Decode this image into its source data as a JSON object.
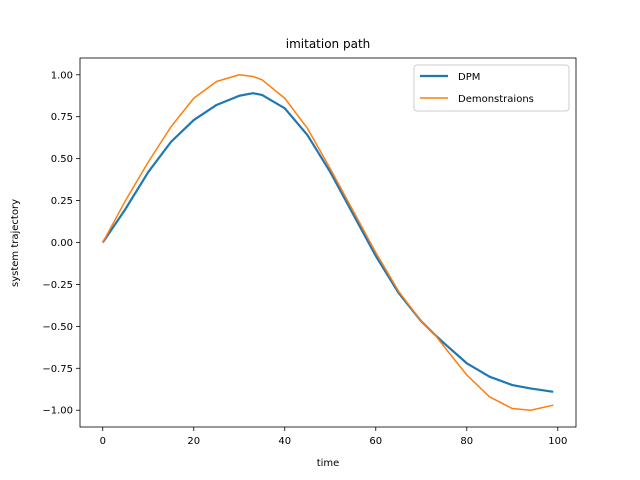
{
  "chart_data": {
    "type": "line",
    "title": "imitation path",
    "xlabel": "time",
    "ylabel": "system trajectory",
    "xlim": [
      -5,
      104
    ],
    "ylim": [
      -1.1,
      1.1
    ],
    "xticks": [
      0,
      20,
      40,
      60,
      80,
      100
    ],
    "yticks": [
      -1.0,
      -0.75,
      -0.5,
      -0.25,
      0.0,
      0.25,
      0.5,
      0.75,
      1.0
    ],
    "ytick_labels": [
      "−1.00",
      "−0.75",
      "−0.50",
      "−0.25",
      "0.00",
      "0.25",
      "0.50",
      "0.75",
      "1.00"
    ],
    "xtick_labels": [
      "0",
      "20",
      "40",
      "60",
      "80",
      "100"
    ],
    "grid": false,
    "legend_position": "top-right",
    "x": [
      0,
      5,
      10,
      15,
      20,
      25,
      30,
      33,
      35,
      40,
      45,
      50,
      55,
      60,
      65,
      70,
      73,
      75,
      80,
      85,
      90,
      94,
      99
    ],
    "series": [
      {
        "name": "DPM",
        "color": "#1f77b4",
        "values": [
          0.0,
          0.2,
          0.42,
          0.6,
          0.73,
          0.82,
          0.875,
          0.89,
          0.88,
          0.8,
          0.64,
          0.42,
          0.17,
          -0.08,
          -0.3,
          -0.47,
          -0.55,
          -0.6,
          -0.72,
          -0.8,
          -0.85,
          -0.87,
          -0.89
        ]
      },
      {
        "name": "Demonstraions",
        "color": "#ff7f0e",
        "values": [
          0.0,
          0.25,
          0.48,
          0.69,
          0.86,
          0.96,
          1.0,
          0.99,
          0.97,
          0.86,
          0.68,
          0.44,
          0.19,
          -0.06,
          -0.29,
          -0.47,
          -0.55,
          -0.62,
          -0.79,
          -0.92,
          -0.99,
          -1.0,
          -0.97
        ]
      }
    ]
  }
}
